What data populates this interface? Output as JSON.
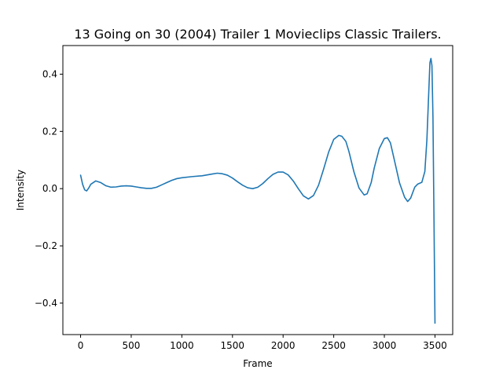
{
  "chart_data": {
    "type": "line",
    "title": "13 Going on 30 (2004) Trailer 1  Movieclips Classic Trailers.",
    "xlabel": "Frame",
    "ylabel": "Intensity",
    "xlim": [
      -175,
      3675
    ],
    "ylim": [
      -0.51,
      0.5
    ],
    "xticks": [
      0,
      500,
      1000,
      1500,
      2000,
      2500,
      3000,
      3500
    ],
    "xtick_labels": [
      "0",
      "500",
      "1000",
      "1500",
      "2000",
      "2500",
      "3000",
      "3500"
    ],
    "yticks": [
      -0.4,
      -0.2,
      0.0,
      0.2,
      0.4
    ],
    "ytick_labels": [
      "−0.4",
      "−0.2",
      "0.0",
      "0.2",
      "0.4"
    ],
    "grid": false,
    "series": [
      {
        "color": "#1f77b4",
        "x": [
          0,
          20,
          40,
          60,
          80,
          100,
          150,
          200,
          250,
          300,
          350,
          400,
          450,
          500,
          550,
          600,
          650,
          700,
          750,
          800,
          850,
          900,
          950,
          1000,
          1100,
          1200,
          1300,
          1350,
          1400,
          1450,
          1500,
          1550,
          1600,
          1650,
          1700,
          1750,
          1800,
          1850,
          1900,
          1950,
          2000,
          2050,
          2100,
          2150,
          2200,
          2250,
          2300,
          2350,
          2400,
          2450,
          2500,
          2550,
          2580,
          2620,
          2650,
          2700,
          2750,
          2800,
          2830,
          2870,
          2900,
          2950,
          3000,
          3030,
          3060,
          3100,
          3150,
          3200,
          3230,
          3260,
          3300,
          3330,
          3370,
          3400,
          3420,
          3440,
          3450,
          3460,
          3470,
          3480,
          3490,
          3500
        ],
        "y": [
          0.047,
          0.015,
          -0.004,
          -0.008,
          0.002,
          0.015,
          0.027,
          0.021,
          0.01,
          0.005,
          0.006,
          0.009,
          0.01,
          0.009,
          0.006,
          0.003,
          0.001,
          0.001,
          0.005,
          0.013,
          0.021,
          0.029,
          0.035,
          0.038,
          0.042,
          0.045,
          0.051,
          0.054,
          0.052,
          0.047,
          0.037,
          0.024,
          0.012,
          0.003,
          0.0,
          0.005,
          0.018,
          0.035,
          0.05,
          0.058,
          0.058,
          0.048,
          0.027,
          0.0,
          -0.025,
          -0.036,
          -0.024,
          0.012,
          0.068,
          0.128,
          0.172,
          0.186,
          0.183,
          0.165,
          0.13,
          0.058,
          0.002,
          -0.022,
          -0.018,
          0.021,
          0.072,
          0.14,
          0.175,
          0.178,
          0.16,
          0.098,
          0.02,
          -0.03,
          -0.045,
          -0.033,
          0.005,
          0.016,
          0.022,
          0.06,
          0.17,
          0.35,
          0.44,
          0.455,
          0.43,
          0.25,
          -0.1,
          -0.47
        ]
      }
    ]
  }
}
